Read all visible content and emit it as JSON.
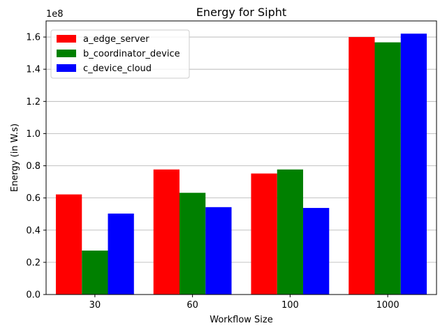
{
  "chart_data": {
    "type": "bar",
    "title": "Energy for Sipht",
    "xlabel": "Workflow Size",
    "ylabel": "Energy (in W.s)",
    "y_scale_label": "1e8",
    "categories": [
      "30",
      "60",
      "100",
      "1000"
    ],
    "ylim": [
      0,
      1.7
    ],
    "yticks": [
      "0.0",
      "0.2",
      "0.4",
      "0.6",
      "0.8",
      "1.0",
      "1.2",
      "1.4",
      "1.6"
    ],
    "grid": "horizontal",
    "legend_position": "top-left",
    "series": [
      {
        "name": "a_edge_server",
        "color": "#ff0000",
        "values": [
          0.622,
          0.777,
          0.752,
          1.6
        ]
      },
      {
        "name": "b_coordinator_device",
        "color": "#008000",
        "values": [
          0.273,
          0.632,
          0.777,
          1.567
        ]
      },
      {
        "name": "c_device_cloud",
        "color": "#0000ff",
        "values": [
          0.503,
          0.543,
          0.538,
          1.621
        ]
      }
    ]
  }
}
